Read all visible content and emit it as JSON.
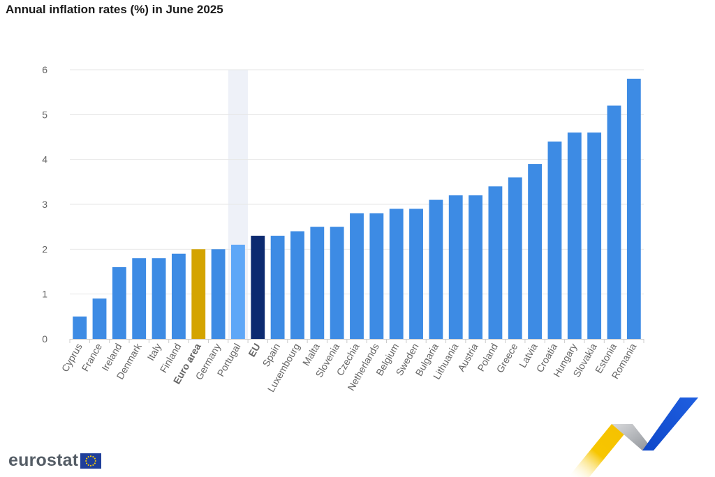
{
  "chart_data": {
    "type": "bar",
    "title": "Annual inflation rates (%) in June 2025",
    "xlabel": "",
    "ylabel": "",
    "ylim": [
      0,
      6
    ],
    "yticks": [
      0,
      1,
      2,
      3,
      4,
      5,
      6
    ],
    "grid": true,
    "categories": [
      "Cyprus",
      "France",
      "Ireland",
      "Denmark",
      "Italy",
      "Finland",
      "Euro area",
      "Germany",
      "Portugal",
      "EU",
      "Spain",
      "Luxembourg",
      "Malta",
      "Slovenia",
      "Czechia",
      "Netherlands",
      "Belgium",
      "Sweden",
      "Bulgaria",
      "Lithuania",
      "Austria",
      "Poland",
      "Greece",
      "Latvia",
      "Croatia",
      "Hungary",
      "Slovakia",
      "Estonia",
      "Romania"
    ],
    "values": [
      0.5,
      0.9,
      1.6,
      1.8,
      1.8,
      1.9,
      2.0,
      2.0,
      2.1,
      2.3,
      2.3,
      2.4,
      2.5,
      2.5,
      2.8,
      2.8,
      2.9,
      2.9,
      3.1,
      3.2,
      3.2,
      3.4,
      3.6,
      3.9,
      4.4,
      4.6,
      4.6,
      5.2,
      5.8
    ],
    "highlighted": [
      "Euro area",
      "EU"
    ],
    "hovered": "Portugal"
  },
  "colors": {
    "default_bar": "#3d8be4",
    "euro_area_bar": "#d4a400",
    "eu_bar": "#0c2a70",
    "hover_bar": "#5ea7f7",
    "grid": "#e6e6e6",
    "hover_band": "#eef1f8"
  },
  "brand": {
    "name": "eurostat",
    "flag_icon": "eu-flag-icon"
  }
}
